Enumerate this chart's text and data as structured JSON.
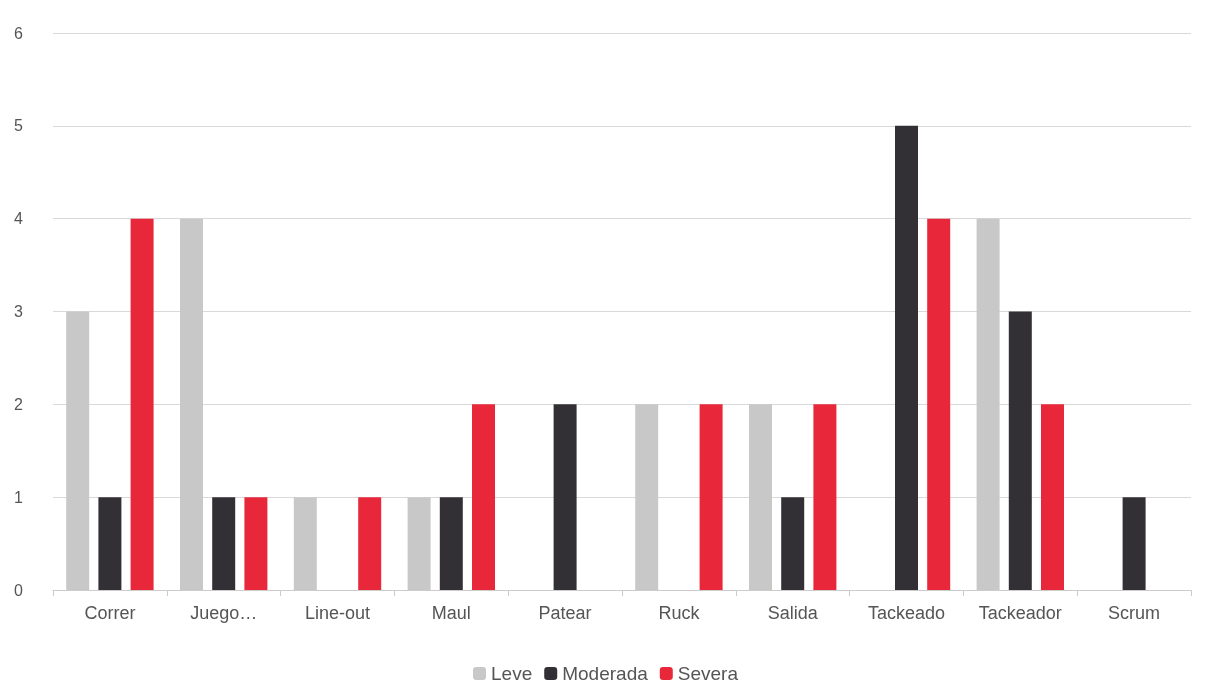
{
  "chart_data": {
    "type": "bar",
    "categories": [
      "Correr",
      "Juego…",
      "Line-out",
      "Maul",
      "Patear",
      "Ruck",
      "Salida",
      "Tackeado",
      "Tackeador",
      "Scrum"
    ],
    "series": [
      {
        "name": "Leve",
        "color": "#c8c8c8",
        "values": [
          3,
          4,
          1,
          1,
          0,
          2,
          2,
          0,
          4,
          0
        ]
      },
      {
        "name": "Moderada",
        "color": "#333035",
        "values": [
          1,
          1,
          0,
          1,
          2,
          0,
          1,
          5,
          3,
          1
        ]
      },
      {
        "name": "Severa",
        "color": "#e8283a",
        "values": [
          4,
          1,
          1,
          2,
          0,
          2,
          2,
          4,
          2,
          0
        ]
      }
    ],
    "ylim": [
      0,
      6
    ],
    "yticks": [
      0,
      1,
      2,
      3,
      4,
      5,
      6
    ],
    "grid": "y",
    "legend": "bottom"
  }
}
